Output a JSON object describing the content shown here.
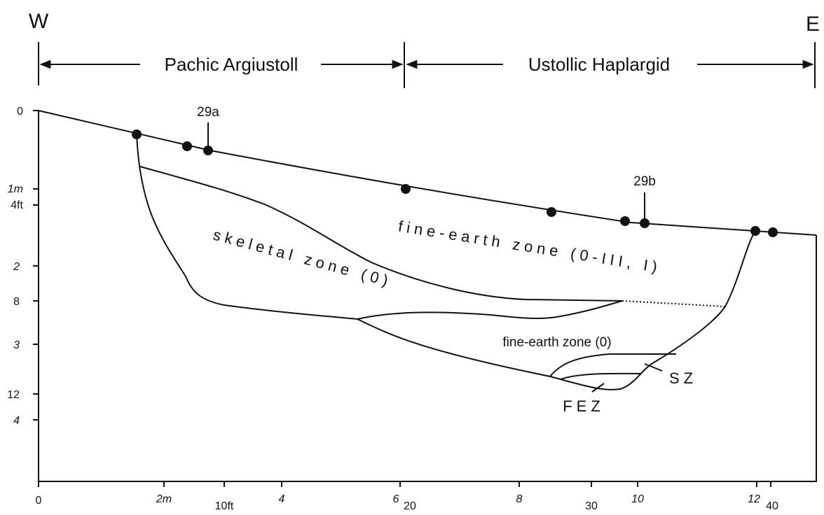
{
  "header": {
    "west": "W",
    "east": "E",
    "left_soil": "Pachic Argiustoll",
    "right_soil": "Ustollic Haplargid"
  },
  "samples": [
    "29a",
    "29b"
  ],
  "depth_axis": [
    "0",
    "1m",
    "4ft",
    "2",
    "8",
    "3",
    "12",
    "4"
  ],
  "distance_axis": [
    "0",
    "2m",
    "10ft",
    "4",
    "6",
    "20",
    "8",
    "30",
    "10",
    "12",
    "40"
  ],
  "zones": {
    "skeletal": "skeletal zone (0)",
    "upper_fine_earth": "fine-earth zone (0-III, I)",
    "lower_fine_earth": "fine-earth zone (0)",
    "sz": "SZ",
    "fez": "FEZ"
  }
}
